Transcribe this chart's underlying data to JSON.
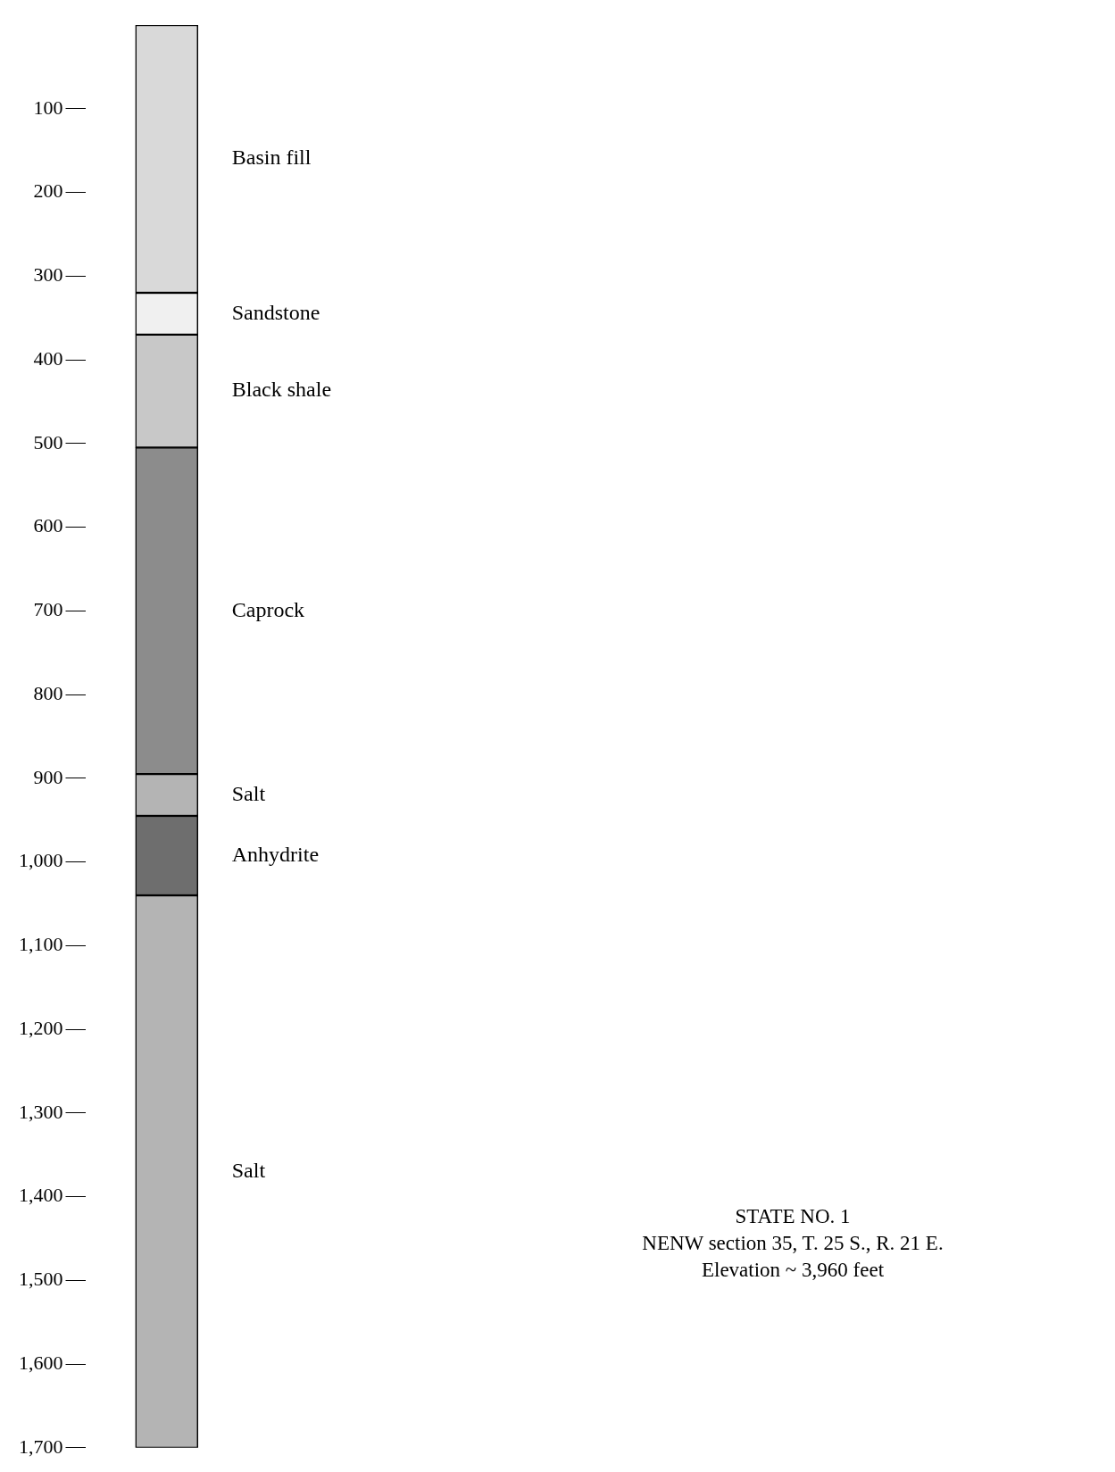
{
  "chart_data": {
    "type": "bar",
    "stacked": true,
    "categories": [
      null
    ],
    "series": [
      {
        "name": "Basin fill",
        "color": "#d9d9d9",
        "values": [
          320
        ]
      },
      {
        "name": "Sandstone",
        "color": "#f0f0f0",
        "values": [
          50
        ]
      },
      {
        "name": "Black shale",
        "color": "#c8c8c8",
        "values": [
          135
        ]
      },
      {
        "name": "Caprock",
        "color": "#8c8c8c",
        "values": [
          390
        ]
      },
      {
        "name": "Salt",
        "color": "#b4b4b4",
        "values": [
          50
        ]
      },
      {
        "name": "Anhydrite",
        "color": "#6e6e6e",
        "values": [
          95
        ]
      },
      {
        "name": "Salt",
        "color": "#b4b4b4",
        "values": [
          660
        ]
      }
    ],
    "ylim": [
      1700,
      0
    ],
    "yticks": [
      100,
      200,
      300,
      400,
      500,
      600,
      700,
      800,
      900,
      {
        "value": 1000,
        "label": "1,000"
      },
      {
        "value": 1100,
        "label": "1,100"
      },
      {
        "value": 1200,
        "label": "1,200"
      },
      {
        "value": 1300,
        "label": "1,300"
      },
      {
        "value": 1400,
        "label": "1,400"
      },
      {
        "value": 1500,
        "label": "1,500"
      },
      {
        "value": 1600,
        "label": "1,600"
      },
      {
        "value": 1700,
        "label": "1,700"
      }
    ],
    "tick_labels": "y",
    "grid": false,
    "legend": false,
    "annotations": [
      "STATE NO. 1",
      "NENW section 35, T. 25 S., R. 21 E.",
      "Elevation ~ 3,960 feet"
    ]
  }
}
